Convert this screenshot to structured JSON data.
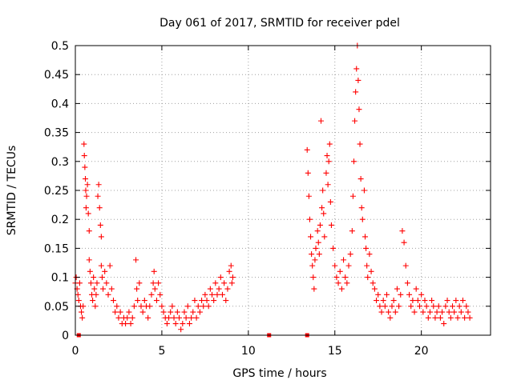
{
  "chart_data": {
    "type": "scatter",
    "title": "Day 061 of 2017, SRMTID for receiver pdel",
    "xlabel": "GPS time / hours",
    "ylabel": "SRMTID / TECUs",
    "xlim": [
      0,
      24
    ],
    "ylim": [
      0,
      0.5
    ],
    "x_ticks": [
      0,
      5,
      10,
      15,
      20
    ],
    "x_tick_labels": [
      "0",
      "5",
      "10",
      "15",
      "20"
    ],
    "y_ticks": [
      0,
      0.05,
      0.1,
      0.15,
      0.2,
      0.25,
      0.3,
      0.35,
      0.4,
      0.45,
      0.5
    ],
    "y_tick_labels": [
      "0",
      "0.05",
      "0.1",
      "0.15",
      "0.2",
      "0.25",
      "0.3",
      "0.35",
      "0.4",
      "0.45",
      "0.5"
    ],
    "grid": true,
    "marker": "+",
    "color": "#ff0000",
    "zero_markers_x": [
      0.2,
      11.2,
      13.4
    ],
    "series": [
      {
        "name": "SRMTID",
        "points": [
          [
            0.0,
            0.09
          ],
          [
            0.05,
            0.1
          ],
          [
            0.1,
            0.08
          ],
          [
            0.15,
            0.07
          ],
          [
            0.2,
            0.06
          ],
          [
            0.25,
            0.09
          ],
          [
            0.3,
            0.05
          ],
          [
            0.35,
            0.04
          ],
          [
            0.4,
            0.03
          ],
          [
            0.45,
            0.05
          ],
          [
            0.5,
            0.33
          ],
          [
            0.52,
            0.31
          ],
          [
            0.55,
            0.29
          ],
          [
            0.58,
            0.27
          ],
          [
            0.6,
            0.25
          ],
          [
            0.62,
            0.22
          ],
          [
            0.65,
            0.24
          ],
          [
            0.7,
            0.26
          ],
          [
            0.75,
            0.21
          ],
          [
            0.8,
            0.18
          ],
          [
            0.8,
            0.13
          ],
          [
            0.85,
            0.11
          ],
          [
            0.9,
            0.09
          ],
          [
            0.95,
            0.07
          ],
          [
            1.0,
            0.06
          ],
          [
            1.05,
            0.1
          ],
          [
            1.1,
            0.08
          ],
          [
            1.15,
            0.05
          ],
          [
            1.2,
            0.07
          ],
          [
            1.25,
            0.09
          ],
          [
            1.3,
            0.24
          ],
          [
            1.35,
            0.26
          ],
          [
            1.4,
            0.22
          ],
          [
            1.45,
            0.19
          ],
          [
            1.5,
            0.17
          ],
          [
            1.5,
            0.12
          ],
          [
            1.55,
            0.1
          ],
          [
            1.6,
            0.08
          ],
          [
            1.7,
            0.11
          ],
          [
            1.8,
            0.09
          ],
          [
            1.9,
            0.07
          ],
          [
            2.0,
            0.12
          ],
          [
            2.1,
            0.08
          ],
          [
            2.2,
            0.06
          ],
          [
            2.3,
            0.04
          ],
          [
            2.4,
            0.05
          ],
          [
            2.5,
            0.03
          ],
          [
            2.6,
            0.04
          ],
          [
            2.7,
            0.02
          ],
          [
            2.8,
            0.03
          ],
          [
            2.9,
            0.02
          ],
          [
            3.0,
            0.03
          ],
          [
            3.1,
            0.04
          ],
          [
            3.2,
            0.02
          ],
          [
            3.3,
            0.03
          ],
          [
            3.4,
            0.05
          ],
          [
            3.5,
            0.13
          ],
          [
            3.55,
            0.08
          ],
          [
            3.6,
            0.06
          ],
          [
            3.7,
            0.09
          ],
          [
            3.8,
            0.05
          ],
          [
            3.9,
            0.04
          ],
          [
            4.0,
            0.06
          ],
          [
            4.1,
            0.05
          ],
          [
            4.2,
            0.03
          ],
          [
            4.3,
            0.05
          ],
          [
            4.4,
            0.07
          ],
          [
            4.5,
            0.09
          ],
          [
            4.55,
            0.11
          ],
          [
            4.6,
            0.08
          ],
          [
            4.7,
            0.06
          ],
          [
            4.8,
            0.09
          ],
          [
            4.9,
            0.07
          ],
          [
            5.0,
            0.05
          ],
          [
            5.1,
            0.04
          ],
          [
            5.2,
            0.03
          ],
          [
            5.3,
            0.02
          ],
          [
            5.4,
            0.03
          ],
          [
            5.5,
            0.04
          ],
          [
            5.6,
            0.05
          ],
          [
            5.7,
            0.03
          ],
          [
            5.8,
            0.02
          ],
          [
            5.9,
            0.04
          ],
          [
            6.0,
            0.03
          ],
          [
            6.1,
            0.01
          ],
          [
            6.2,
            0.02
          ],
          [
            6.3,
            0.04
          ],
          [
            6.4,
            0.03
          ],
          [
            6.5,
            0.05
          ],
          [
            6.6,
            0.02
          ],
          [
            6.7,
            0.03
          ],
          [
            6.8,
            0.04
          ],
          [
            6.9,
            0.06
          ],
          [
            7.0,
            0.03
          ],
          [
            7.1,
            0.05
          ],
          [
            7.2,
            0.04
          ],
          [
            7.3,
            0.06
          ],
          [
            7.4,
            0.05
          ],
          [
            7.5,
            0.07
          ],
          [
            7.6,
            0.06
          ],
          [
            7.7,
            0.05
          ],
          [
            7.8,
            0.08
          ],
          [
            7.9,
            0.07
          ],
          [
            8.0,
            0.06
          ],
          [
            8.1,
            0.09
          ],
          [
            8.2,
            0.07
          ],
          [
            8.3,
            0.08
          ],
          [
            8.4,
            0.1
          ],
          [
            8.5,
            0.07
          ],
          [
            8.6,
            0.09
          ],
          [
            8.7,
            0.06
          ],
          [
            8.8,
            0.08
          ],
          [
            8.9,
            0.11
          ],
          [
            9.0,
            0.12
          ],
          [
            9.05,
            0.09
          ],
          [
            9.1,
            0.1
          ],
          [
            13.4,
            0.32
          ],
          [
            13.45,
            0.28
          ],
          [
            13.5,
            0.24
          ],
          [
            13.55,
            0.2
          ],
          [
            13.6,
            0.17
          ],
          [
            13.65,
            0.14
          ],
          [
            13.7,
            0.12
          ],
          [
            13.75,
            0.1
          ],
          [
            13.8,
            0.08
          ],
          [
            13.85,
            0.13
          ],
          [
            13.9,
            0.15
          ],
          [
            14.0,
            0.18
          ],
          [
            14.05,
            0.16
          ],
          [
            14.1,
            0.14
          ],
          [
            14.15,
            0.19
          ],
          [
            14.2,
            0.37
          ],
          [
            14.25,
            0.22
          ],
          [
            14.3,
            0.25
          ],
          [
            14.35,
            0.21
          ],
          [
            14.4,
            0.17
          ],
          [
            14.5,
            0.28
          ],
          [
            14.55,
            0.31
          ],
          [
            14.6,
            0.26
          ],
          [
            14.65,
            0.3
          ],
          [
            14.7,
            0.33
          ],
          [
            14.75,
            0.23
          ],
          [
            14.8,
            0.19
          ],
          [
            14.9,
            0.15
          ],
          [
            15.0,
            0.12
          ],
          [
            15.1,
            0.1
          ],
          [
            15.2,
            0.09
          ],
          [
            15.3,
            0.11
          ],
          [
            15.4,
            0.08
          ],
          [
            15.5,
            0.13
          ],
          [
            15.6,
            0.1
          ],
          [
            15.7,
            0.09
          ],
          [
            15.8,
            0.12
          ],
          [
            15.9,
            0.14
          ],
          [
            16.0,
            0.18
          ],
          [
            16.05,
            0.24
          ],
          [
            16.1,
            0.3
          ],
          [
            16.15,
            0.37
          ],
          [
            16.2,
            0.42
          ],
          [
            16.25,
            0.46
          ],
          [
            16.3,
            0.5
          ],
          [
            16.35,
            0.44
          ],
          [
            16.4,
            0.39
          ],
          [
            16.45,
            0.33
          ],
          [
            16.5,
            0.27
          ],
          [
            16.55,
            0.22
          ],
          [
            16.6,
            0.2
          ],
          [
            16.7,
            0.25
          ],
          [
            16.75,
            0.17
          ],
          [
            16.8,
            0.15
          ],
          [
            16.85,
            0.12
          ],
          [
            16.9,
            0.1
          ],
          [
            17.0,
            0.14
          ],
          [
            17.1,
            0.11
          ],
          [
            17.2,
            0.09
          ],
          [
            17.3,
            0.08
          ],
          [
            17.4,
            0.06
          ],
          [
            17.5,
            0.07
          ],
          [
            17.6,
            0.05
          ],
          [
            17.7,
            0.04
          ],
          [
            17.8,
            0.06
          ],
          [
            17.9,
            0.05
          ],
          [
            18.0,
            0.07
          ],
          [
            18.1,
            0.04
          ],
          [
            18.2,
            0.03
          ],
          [
            18.3,
            0.05
          ],
          [
            18.4,
            0.06
          ],
          [
            18.5,
            0.04
          ],
          [
            18.6,
            0.08
          ],
          [
            18.7,
            0.05
          ],
          [
            18.8,
            0.07
          ],
          [
            18.9,
            0.18
          ],
          [
            19.0,
            0.16
          ],
          [
            19.1,
            0.12
          ],
          [
            19.2,
            0.09
          ],
          [
            19.3,
            0.07
          ],
          [
            19.4,
            0.05
          ],
          [
            19.5,
            0.06
          ],
          [
            19.6,
            0.04
          ],
          [
            19.7,
            0.08
          ],
          [
            19.8,
            0.06
          ],
          [
            19.9,
            0.05
          ],
          [
            20.0,
            0.07
          ],
          [
            20.1,
            0.04
          ],
          [
            20.2,
            0.06
          ],
          [
            20.3,
            0.05
          ],
          [
            20.4,
            0.03
          ],
          [
            20.5,
            0.04
          ],
          [
            20.6,
            0.06
          ],
          [
            20.7,
            0.05
          ],
          [
            20.8,
            0.03
          ],
          [
            20.9,
            0.04
          ],
          [
            21.0,
            0.05
          ],
          [
            21.1,
            0.03
          ],
          [
            21.2,
            0.04
          ],
          [
            21.3,
            0.02
          ],
          [
            21.4,
            0.05
          ],
          [
            21.5,
            0.06
          ],
          [
            21.6,
            0.04
          ],
          [
            21.7,
            0.03
          ],
          [
            21.8,
            0.05
          ],
          [
            21.9,
            0.04
          ],
          [
            22.0,
            0.06
          ],
          [
            22.1,
            0.03
          ],
          [
            22.2,
            0.05
          ],
          [
            22.3,
            0.04
          ],
          [
            22.4,
            0.06
          ],
          [
            22.5,
            0.03
          ],
          [
            22.6,
            0.05
          ],
          [
            22.7,
            0.04
          ],
          [
            22.8,
            0.03
          ]
        ]
      }
    ]
  }
}
